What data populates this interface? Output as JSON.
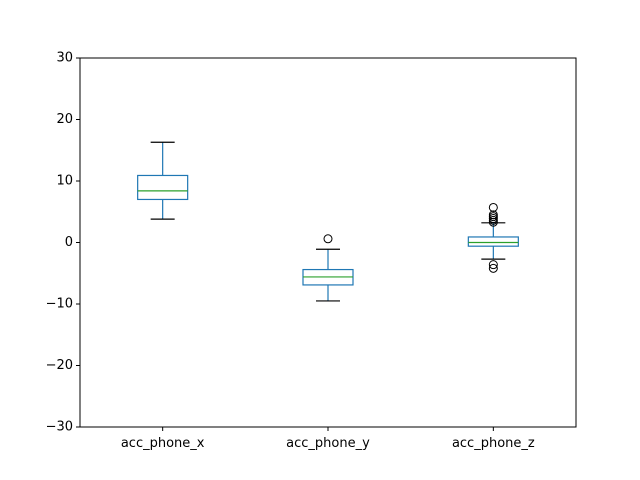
{
  "chart_data": {
    "type": "box",
    "title": "",
    "xlabel": "",
    "ylabel": "",
    "ylim": [
      -30,
      30
    ],
    "yticks": [
      30,
      20,
      10,
      0,
      -10,
      -20,
      -30
    ],
    "ytick_labels": [
      "30",
      "20",
      "10",
      "0",
      "−10",
      "−20",
      "−30"
    ],
    "grid": false,
    "colors": {
      "box": "#1f77b4",
      "median": "#2ca02c",
      "whisker": "#1f77b4",
      "cap": "#000000",
      "flier": "#000000",
      "axes": "#000000"
    },
    "categories": [
      "acc_phone_x",
      "acc_phone_y",
      "acc_phone_z"
    ],
    "boxes": [
      {
        "label": "acc_phone_x",
        "whislo": 3.8,
        "q1": 7.0,
        "median": 8.4,
        "q3": 10.9,
        "whishi": 16.3,
        "fliers": []
      },
      {
        "label": "acc_phone_y",
        "whislo": -9.5,
        "q1": -6.9,
        "median": -5.6,
        "q3": -4.4,
        "whishi": -1.1,
        "fliers": [
          0.6
        ]
      },
      {
        "label": "acc_phone_z",
        "whislo": -2.7,
        "q1": -0.6,
        "median": 0.0,
        "q3": 0.9,
        "whishi": 3.2,
        "fliers": [
          5.7,
          4.5,
          4.2,
          3.9,
          3.6,
          3.3,
          -3.6,
          -4.2
        ]
      }
    ]
  }
}
